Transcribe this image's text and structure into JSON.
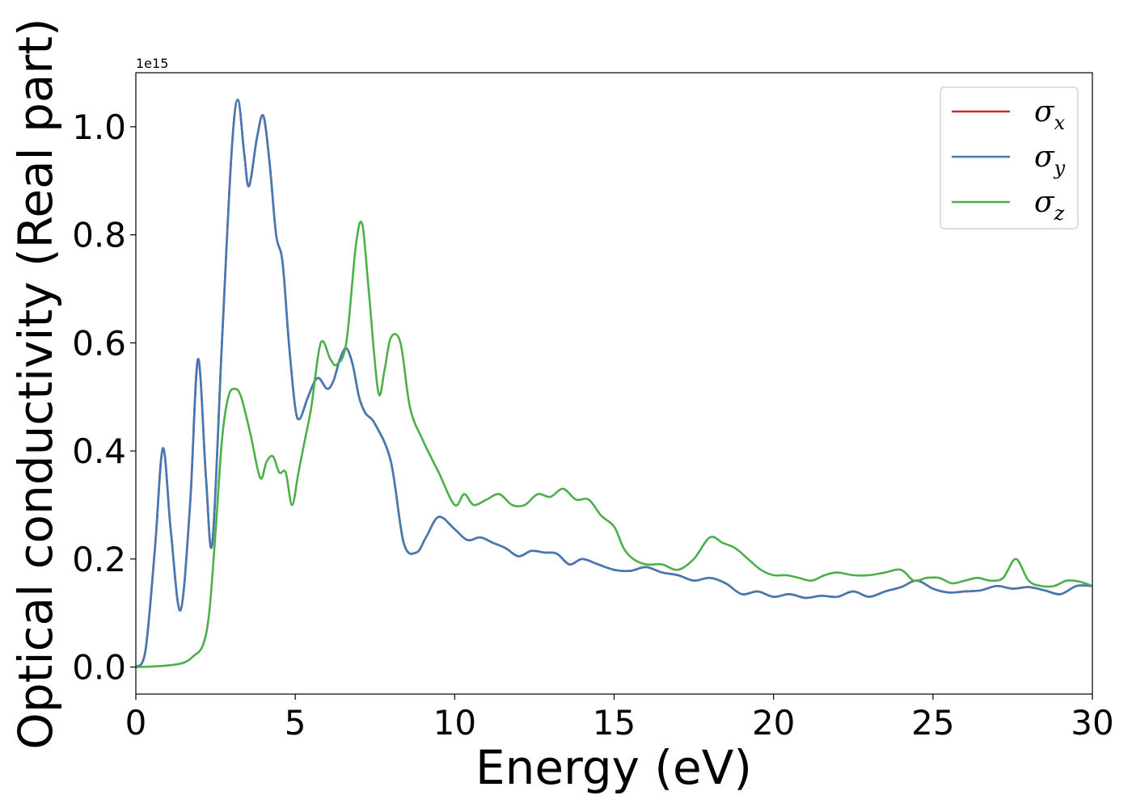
{
  "chart_data": {
    "type": "line",
    "xlabel": "Energy (eV)",
    "ylabel": "Optical conductivity (Real part)",
    "y_offset_label": "1e15",
    "xlim": [
      0,
      30
    ],
    "ylim": [
      -0.05,
      1.1
    ],
    "xticks": [
      0,
      5,
      10,
      15,
      20,
      25,
      30
    ],
    "xtick_labels": [
      "0",
      "5",
      "10",
      "15",
      "20",
      "25",
      "30"
    ],
    "yticks": [
      0.0,
      0.2,
      0.4,
      0.6,
      0.8,
      1.0
    ],
    "ytick_labels": [
      "0.0",
      "0.2",
      "0.4",
      "0.6",
      "0.8",
      "1.0"
    ],
    "grid": false,
    "legend_position": "top-right",
    "series": [
      {
        "name": "σx",
        "base": "σ",
        "sub": "x",
        "color": "#d62728",
        "x": [
          0,
          0.3,
          0.6,
          0.85,
          1.1,
          1.4,
          1.7,
          1.95,
          2.2,
          2.4,
          2.7,
          3.0,
          3.2,
          3.4,
          3.55,
          3.8,
          4.0,
          4.2,
          4.4,
          4.6,
          4.8,
          5.0,
          5.15,
          5.4,
          5.7,
          6.0,
          6.2,
          6.4,
          6.6,
          6.8,
          7.0,
          7.2,
          7.5,
          8.0,
          8.4,
          8.8,
          9.1,
          9.5,
          10.0,
          10.4,
          10.8,
          11.2,
          11.6,
          12.0,
          12.4,
          12.8,
          13.2,
          13.6,
          14.0,
          14.5,
          15.0,
          15.5,
          16.0,
          16.5,
          17.0,
          17.5,
          18.0,
          18.5,
          19.0,
          19.5,
          20.0,
          20.5,
          21.0,
          21.5,
          22.0,
          22.5,
          23.0,
          23.5,
          24.0,
          24.5,
          25.0,
          25.5,
          26.0,
          26.5,
          27.0,
          27.5,
          28.0,
          28.5,
          29.0,
          29.5,
          30.0
        ],
        "y": [
          0.0,
          0.03,
          0.22,
          0.405,
          0.25,
          0.105,
          0.3,
          0.57,
          0.35,
          0.23,
          0.6,
          0.95,
          1.05,
          0.95,
          0.89,
          0.98,
          1.02,
          0.93,
          0.8,
          0.75,
          0.6,
          0.48,
          0.46,
          0.5,
          0.535,
          0.515,
          0.53,
          0.57,
          0.59,
          0.56,
          0.5,
          0.47,
          0.45,
          0.38,
          0.23,
          0.212,
          0.24,
          0.278,
          0.255,
          0.235,
          0.24,
          0.23,
          0.22,
          0.205,
          0.215,
          0.212,
          0.21,
          0.19,
          0.2,
          0.19,
          0.18,
          0.178,
          0.185,
          0.175,
          0.17,
          0.16,
          0.165,
          0.155,
          0.135,
          0.14,
          0.13,
          0.135,
          0.128,
          0.132,
          0.13,
          0.14,
          0.13,
          0.14,
          0.148,
          0.16,
          0.145,
          0.138,
          0.14,
          0.142,
          0.15,
          0.145,
          0.148,
          0.142,
          0.135,
          0.15,
          0.15
        ]
      },
      {
        "name": "σy",
        "base": "σ",
        "sub": "y",
        "color": "#4479b4",
        "x": [
          0,
          0.3,
          0.6,
          0.85,
          1.1,
          1.4,
          1.7,
          1.95,
          2.2,
          2.4,
          2.7,
          3.0,
          3.2,
          3.4,
          3.55,
          3.8,
          4.0,
          4.2,
          4.4,
          4.6,
          4.8,
          5.0,
          5.15,
          5.4,
          5.7,
          6.0,
          6.2,
          6.4,
          6.6,
          6.8,
          7.0,
          7.2,
          7.5,
          8.0,
          8.4,
          8.8,
          9.1,
          9.5,
          10.0,
          10.4,
          10.8,
          11.2,
          11.6,
          12.0,
          12.4,
          12.8,
          13.2,
          13.6,
          14.0,
          14.5,
          15.0,
          15.5,
          16.0,
          16.5,
          17.0,
          17.5,
          18.0,
          18.5,
          19.0,
          19.5,
          20.0,
          20.5,
          21.0,
          21.5,
          22.0,
          22.5,
          23.0,
          23.5,
          24.0,
          24.5,
          25.0,
          25.5,
          26.0,
          26.5,
          27.0,
          27.5,
          28.0,
          28.5,
          29.0,
          29.5,
          30.0
        ],
        "y": [
          0.0,
          0.03,
          0.22,
          0.405,
          0.25,
          0.105,
          0.3,
          0.57,
          0.35,
          0.23,
          0.6,
          0.95,
          1.05,
          0.95,
          0.89,
          0.98,
          1.02,
          0.93,
          0.8,
          0.75,
          0.6,
          0.48,
          0.46,
          0.5,
          0.535,
          0.515,
          0.53,
          0.57,
          0.59,
          0.56,
          0.5,
          0.47,
          0.45,
          0.38,
          0.23,
          0.212,
          0.24,
          0.278,
          0.255,
          0.235,
          0.24,
          0.23,
          0.22,
          0.205,
          0.215,
          0.212,
          0.21,
          0.19,
          0.2,
          0.19,
          0.18,
          0.178,
          0.185,
          0.175,
          0.17,
          0.16,
          0.165,
          0.155,
          0.135,
          0.14,
          0.13,
          0.135,
          0.128,
          0.132,
          0.13,
          0.14,
          0.13,
          0.14,
          0.148,
          0.16,
          0.145,
          0.138,
          0.14,
          0.142,
          0.15,
          0.145,
          0.148,
          0.142,
          0.135,
          0.15,
          0.15
        ]
      },
      {
        "name": "σz",
        "base": "σ",
        "sub": "z",
        "color": "#4daf4a",
        "x": [
          0,
          0.5,
          1.0,
          1.5,
          1.8,
          2.1,
          2.3,
          2.5,
          2.7,
          2.9,
          3.1,
          3.3,
          3.6,
          3.9,
          4.1,
          4.3,
          4.5,
          4.7,
          4.9,
          5.1,
          5.3,
          5.5,
          5.8,
          6.1,
          6.3,
          6.6,
          6.9,
          7.1,
          7.3,
          7.6,
          7.8,
          8.0,
          8.3,
          8.6,
          9.0,
          9.5,
          10.0,
          10.3,
          10.6,
          11.0,
          11.4,
          11.8,
          12.2,
          12.6,
          13.0,
          13.4,
          13.8,
          14.2,
          14.6,
          15.0,
          15.3,
          15.6,
          16.0,
          16.5,
          17.0,
          17.5,
          18.0,
          18.4,
          18.8,
          19.2,
          19.6,
          20.0,
          20.4,
          20.8,
          21.2,
          21.6,
          22.0,
          22.5,
          23.0,
          23.5,
          24.0,
          24.4,
          24.8,
          25.2,
          25.6,
          26.0,
          26.4,
          26.8,
          27.2,
          27.6,
          28.0,
          28.4,
          28.8,
          29.2,
          29.6,
          30.0
        ],
        "y": [
          0.0,
          0.001,
          0.003,
          0.008,
          0.02,
          0.04,
          0.1,
          0.25,
          0.42,
          0.5,
          0.515,
          0.5,
          0.43,
          0.35,
          0.38,
          0.39,
          0.36,
          0.36,
          0.3,
          0.36,
          0.42,
          0.48,
          0.6,
          0.57,
          0.56,
          0.6,
          0.78,
          0.82,
          0.7,
          0.51,
          0.55,
          0.61,
          0.6,
          0.48,
          0.42,
          0.36,
          0.3,
          0.32,
          0.3,
          0.31,
          0.32,
          0.3,
          0.3,
          0.32,
          0.315,
          0.33,
          0.31,
          0.31,
          0.28,
          0.26,
          0.22,
          0.2,
          0.19,
          0.19,
          0.18,
          0.2,
          0.24,
          0.23,
          0.22,
          0.2,
          0.18,
          0.17,
          0.17,
          0.165,
          0.16,
          0.17,
          0.175,
          0.17,
          0.17,
          0.175,
          0.18,
          0.16,
          0.165,
          0.165,
          0.155,
          0.16,
          0.165,
          0.16,
          0.165,
          0.2,
          0.16,
          0.15,
          0.15,
          0.16,
          0.158,
          0.15
        ]
      }
    ]
  }
}
